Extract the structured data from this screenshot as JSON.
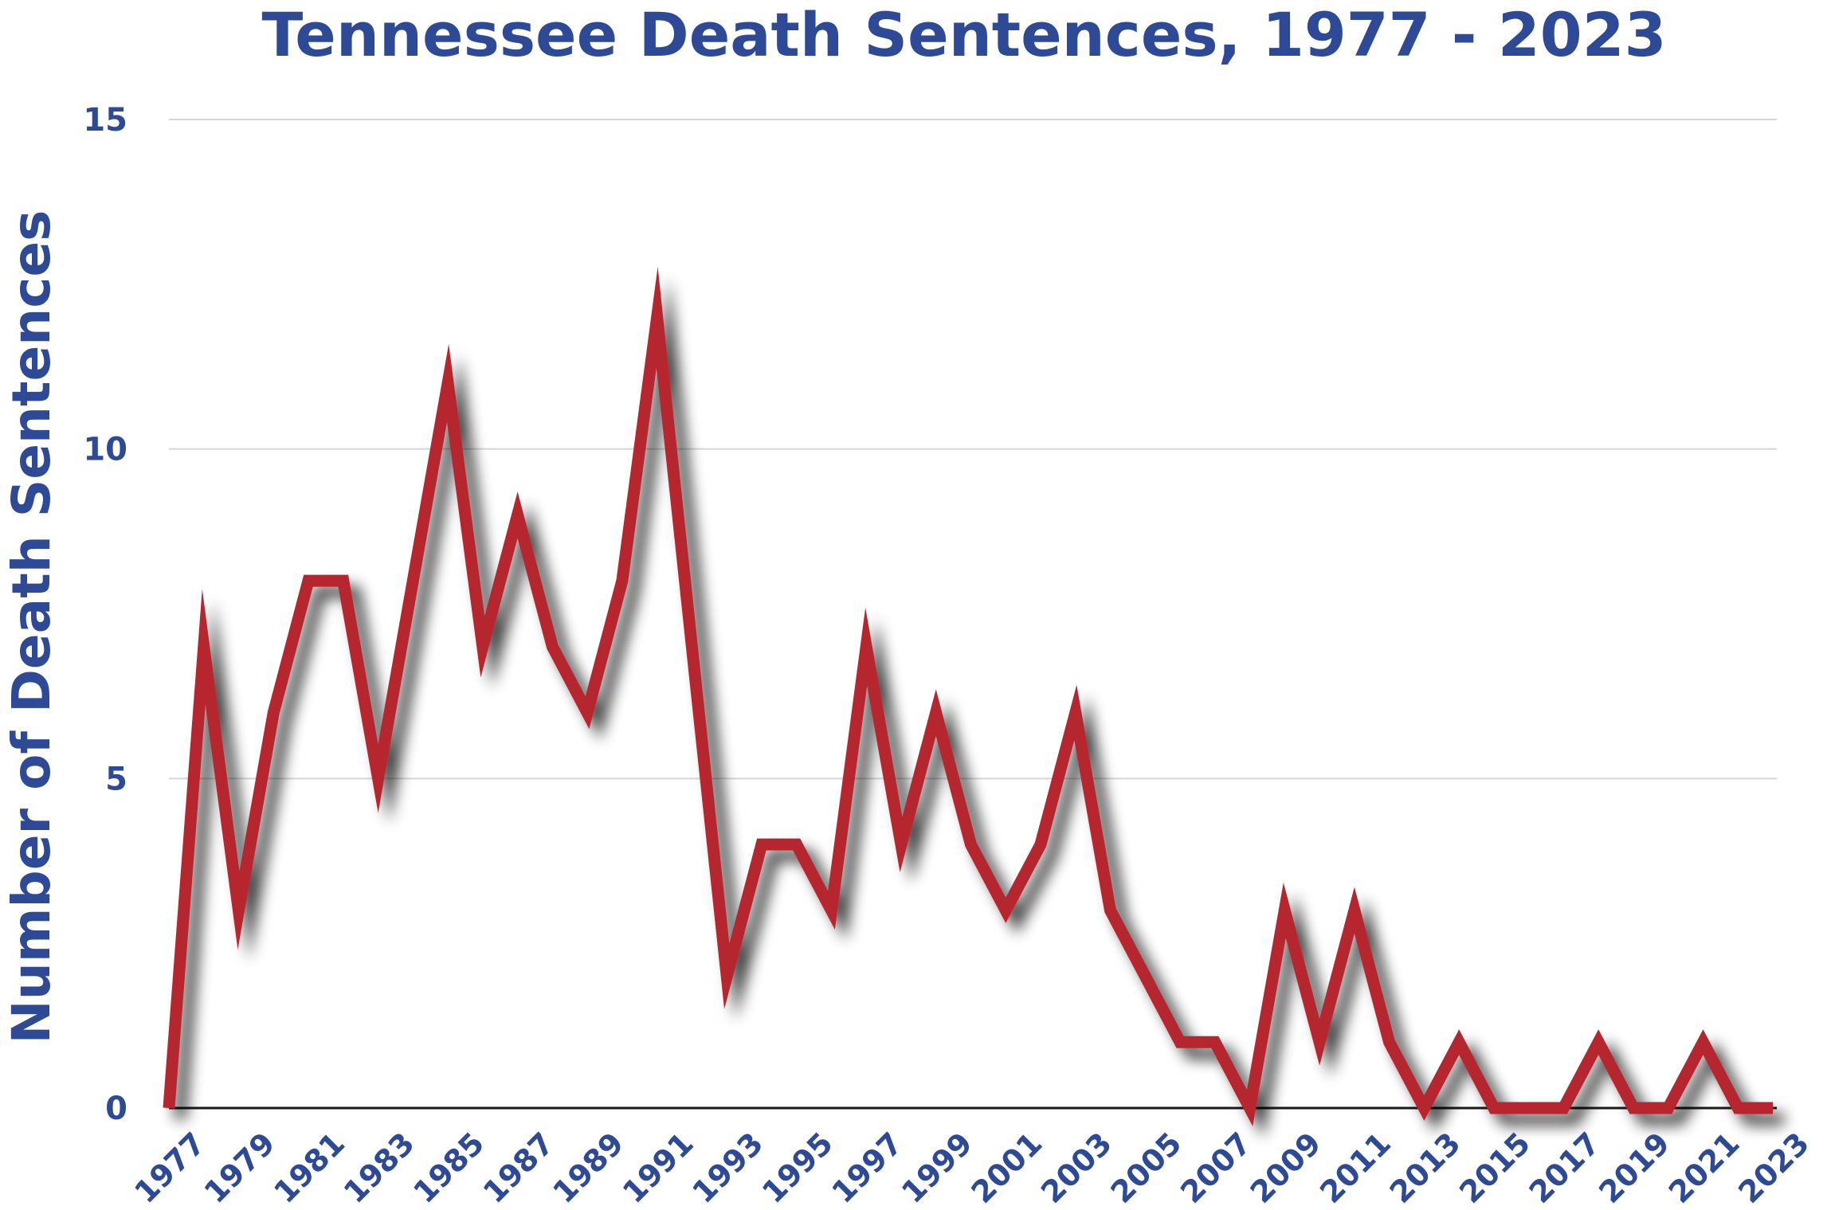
{
  "chart_data": {
    "type": "line",
    "title": "Tennessee Death Sentences, 1977 - 2023",
    "ylabel": "Number of Death Sentences",
    "xlabel": "",
    "ylim": [
      0,
      15
    ],
    "yticks": [
      "0",
      "5",
      "10",
      "15"
    ],
    "grid": true,
    "legend": "none",
    "x": [
      1977,
      1978,
      1979,
      1980,
      1981,
      1982,
      1983,
      1984,
      1985,
      1986,
      1987,
      1988,
      1989,
      1990,
      1991,
      1992,
      1993,
      1994,
      1995,
      1996,
      1997,
      1998,
      1999,
      2000,
      2001,
      2002,
      2003,
      2004,
      2005,
      2006,
      2007,
      2008,
      2009,
      2010,
      2011,
      2012,
      2013,
      2014,
      2015,
      2016,
      2017,
      2018,
      2019,
      2020,
      2021,
      2022,
      2023
    ],
    "xtick_labels": [
      "1977",
      "1979",
      "1981",
      "1983",
      "1985",
      "1987",
      "1989",
      "1991",
      "1993",
      "1995",
      "1997",
      "1999",
      "2001",
      "2003",
      "2005",
      "2007",
      "2009",
      "2011",
      "2013",
      "2015",
      "2017",
      "2019",
      "2021",
      "2023"
    ],
    "series": [
      {
        "values": [
          0,
          7,
          3,
          6,
          8,
          8,
          5,
          8,
          11,
          7,
          9,
          7,
          6,
          8,
          12,
          7,
          2,
          4,
          4,
          3,
          7,
          4,
          6,
          4,
          3,
          4,
          6,
          3,
          2,
          1,
          1,
          0,
          3,
          1,
          3,
          1,
          0,
          1,
          0,
          0,
          0,
          1,
          0,
          0,
          1,
          0,
          0
        ]
      }
    ],
    "colors": {
      "line": "#b5252f",
      "text": "#2e4a97",
      "grid": "#d6d6d6",
      "axis": "#1a1a1a"
    }
  }
}
